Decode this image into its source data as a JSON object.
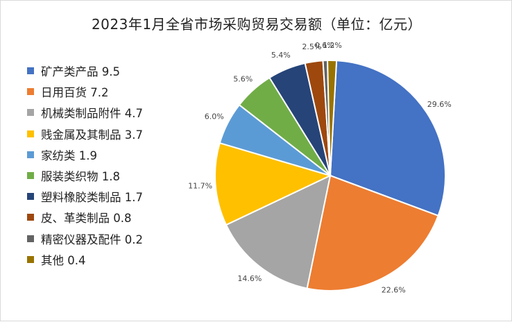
{
  "chart_data": {
    "type": "pie",
    "title": "2023年1月全省市场采购贸易交易额（单位：亿元）",
    "legend_position": "left",
    "slices": [
      {
        "label": "矿产类产品 9.5",
        "category": "矿产类产品",
        "value": 9.5,
        "percent_label": "29.6%",
        "color": "#4472c4"
      },
      {
        "label": "日用百货 7.2",
        "category": "日用百货",
        "value": 7.2,
        "percent_label": "22.6%",
        "color": "#ed7d31"
      },
      {
        "label": "机械类制品附件 4.7",
        "category": "机械类制品附件",
        "value": 4.7,
        "percent_label": "14.6%",
        "color": "#a5a5a5"
      },
      {
        "label": "贱金属及其制品 3.7",
        "category": "贱金属及其制品",
        "value": 3.7,
        "percent_label": "11.7%",
        "color": "#ffc000"
      },
      {
        "label": "家纺类 1.9",
        "category": "家纺类",
        "value": 1.9,
        "percent_label": "6.0%",
        "color": "#5b9bd5"
      },
      {
        "label": "服装类织物 1.8",
        "category": "服装类织物",
        "value": 1.8,
        "percent_label": "5.6%",
        "color": "#70ad47"
      },
      {
        "label": "塑料橡胶类制品 1.7",
        "category": "塑料橡胶类制品",
        "value": 1.7,
        "percent_label": "5.4%",
        "color": "#264478"
      },
      {
        "label": "皮、革类制品 0.8",
        "category": "皮、革类制品",
        "value": 0.8,
        "percent_label": "2.5%",
        "color": "#9e480e"
      },
      {
        "label": "精密仪器及配件 0.2",
        "category": "精密仪器及配件",
        "value": 0.2,
        "percent_label": "0.6%",
        "color": "#636363"
      },
      {
        "label": "其他 0.4",
        "category": "其他",
        "value": 0.4,
        "percent_label": "1.2%",
        "color": "#997300"
      }
    ]
  }
}
